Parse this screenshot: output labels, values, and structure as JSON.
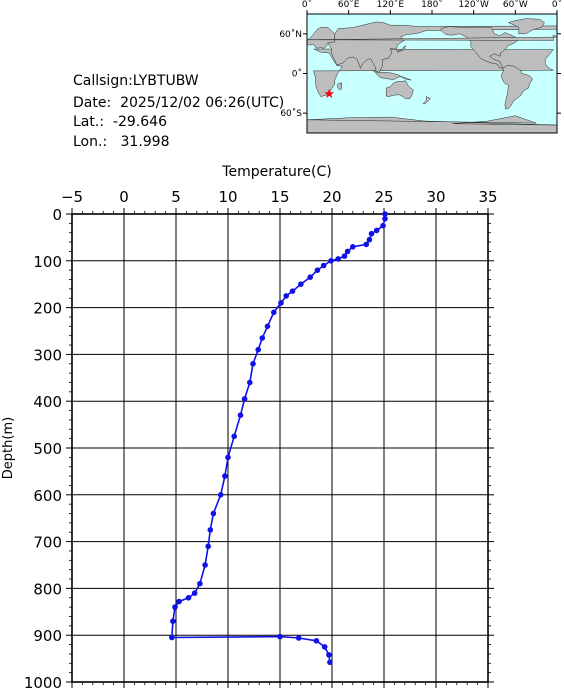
{
  "station": {
    "callsign": "Callsign:LYBTUBW",
    "date": "Date:  2025/12/02 06:26(UTC)",
    "lat": "Lat.:  -29.646",
    "lon": "Lon.:   31.998",
    "marker_lat": -29.646,
    "marker_lon": 31.998
  },
  "map": {
    "lon_labels": [
      "0˚",
      "60˚E",
      "120˚E",
      "180˚",
      "120˚W",
      "60˚W",
      "0˚"
    ],
    "lat_labels": [
      "60˚N",
      "0˚",
      "60˚S"
    ],
    "ocean_color": "#c8ffff",
    "land_color": "#bdbdbd",
    "marker_color": "#ff0000"
  },
  "chart_data": {
    "type": "line",
    "title": "",
    "xlabel": "Temperature(C)",
    "ylabel": "Depth(m)",
    "xlim": [
      -5,
      35
    ],
    "ylim": [
      1000,
      0
    ],
    "x_ticks": [
      -5,
      0,
      5,
      10,
      15,
      20,
      25,
      30,
      35
    ],
    "y_ticks": [
      0,
      100,
      200,
      300,
      400,
      500,
      600,
      700,
      800,
      900,
      1000
    ],
    "grid": true,
    "series_color": "#1010e8",
    "series": [
      {
        "name": "",
        "points": [
          [
            25.1,
            0
          ],
          [
            25.1,
            10
          ],
          [
            24.9,
            25
          ],
          [
            24.3,
            35
          ],
          [
            23.8,
            42
          ],
          [
            23.6,
            55
          ],
          [
            23.3,
            65
          ],
          [
            22.0,
            70
          ],
          [
            21.5,
            80
          ],
          [
            21.2,
            90
          ],
          [
            20.6,
            96
          ],
          [
            19.9,
            100
          ],
          [
            19.2,
            110
          ],
          [
            18.6,
            120
          ],
          [
            17.9,
            135
          ],
          [
            17.0,
            150
          ],
          [
            16.2,
            165
          ],
          [
            15.6,
            175
          ],
          [
            15.1,
            190
          ],
          [
            14.4,
            210
          ],
          [
            13.8,
            240
          ],
          [
            13.3,
            265
          ],
          [
            12.9,
            290
          ],
          [
            12.4,
            320
          ],
          [
            12.1,
            360
          ],
          [
            11.6,
            395
          ],
          [
            11.2,
            430
          ],
          [
            10.6,
            475
          ],
          [
            10.0,
            520
          ],
          [
            9.7,
            560
          ],
          [
            9.3,
            600
          ],
          [
            8.6,
            640
          ],
          [
            8.3,
            675
          ],
          [
            8.1,
            710
          ],
          [
            7.8,
            750
          ],
          [
            7.3,
            790
          ],
          [
            6.8,
            810
          ],
          [
            6.2,
            820
          ],
          [
            5.3,
            828
          ],
          [
            4.9,
            840
          ],
          [
            4.7,
            870
          ],
          [
            4.6,
            905
          ],
          [
            15.0,
            903
          ],
          [
            16.8,
            906
          ],
          [
            18.5,
            912
          ],
          [
            19.3,
            925
          ],
          [
            19.7,
            942
          ],
          [
            19.8,
            958
          ]
        ]
      }
    ]
  }
}
